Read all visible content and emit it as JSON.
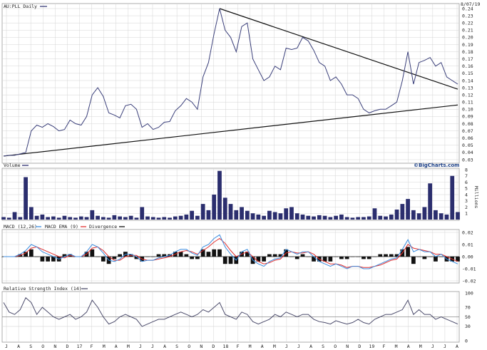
{
  "colors": {
    "price": "#3a3f7a",
    "trendline": "#111111",
    "volume": "#2b2e6e",
    "macd": "#3b8de0",
    "ema": "#e03030",
    "divergence": "#111111",
    "rsi": "#4a4a6a",
    "grid": "#d4d4d4",
    "axis": "#999999"
  },
  "header": {
    "symbol_title": "AU:PLL Daily",
    "date": "8/07/19",
    "brand": "©BigCharts.com"
  },
  "chart_data": [
    {
      "type": "line",
      "title": "AU:PLL Daily",
      "ylim": [
        0.03,
        0.24
      ],
      "y_ticks": [
        "0.24",
        "0.23",
        "0.22",
        "0.21",
        "0.20",
        "0.19",
        "0.18",
        "0.17",
        "0.16",
        "0.15",
        "0.14",
        "0.13",
        "0.12",
        "0.11",
        "0.10",
        "0.09",
        "0.08",
        "0.07",
        "0.06",
        "0.05",
        "0.04",
        "0.03"
      ],
      "x_tick_labels": [
        "J",
        "A",
        "S",
        "O",
        "N",
        "D",
        "17",
        "F",
        "M",
        "A",
        "M",
        "J",
        "J",
        "A",
        "S",
        "O",
        "N",
        "D",
        "18",
        "F",
        "M",
        "A",
        "M",
        "J",
        "J",
        "A",
        "S",
        "O",
        "N",
        "D",
        "19",
        "F",
        "M",
        "A",
        "M",
        "J",
        "J",
        "A"
      ],
      "grid": true,
      "series": [
        {
          "values": [
            0.035,
            0.036,
            0.036,
            0.038,
            0.04,
            0.07,
            0.078,
            0.075,
            0.08,
            0.076,
            0.07,
            0.072,
            0.085,
            0.08,
            0.078,
            0.09,
            0.12,
            0.13,
            0.118,
            0.095,
            0.092,
            0.088,
            0.105,
            0.107,
            0.1,
            0.075,
            0.08,
            0.072,
            0.075,
            0.082,
            0.083,
            0.098,
            0.105,
            0.115,
            0.11,
            0.1,
            0.145,
            0.165,
            0.205,
            0.24,
            0.21,
            0.2,
            0.18,
            0.215,
            0.22,
            0.17,
            0.155,
            0.14,
            0.145,
            0.16,
            0.155,
            0.185,
            0.183,
            0.185,
            0.2,
            0.195,
            0.182,
            0.165,
            0.16,
            0.14,
            0.145,
            0.135,
            0.12,
            0.12,
            0.115,
            0.1,
            0.095,
            0.098,
            0.1,
            0.1,
            0.105,
            0.11,
            0.14,
            0.18,
            0.135,
            0.165,
            0.168,
            0.172,
            0.16,
            0.165,
            0.145,
            0.14,
            0.135
          ]
        }
      ],
      "trendlines": [
        {
          "from_index": 0,
          "from_value": 0.035,
          "to_index": 82,
          "to_value": 0.106
        },
        {
          "from_index": 39,
          "from_value": 0.24,
          "to_index": 82,
          "to_value": 0.128
        }
      ]
    },
    {
      "type": "bar",
      "title": "Volume",
      "ylabel": "Millions",
      "ylim": [
        0,
        8
      ],
      "y_ticks": [
        "8",
        "7",
        "6",
        "5",
        "4",
        "3",
        "2",
        "1"
      ],
      "series": [
        {
          "values": [
            0.4,
            0.3,
            1.2,
            0.4,
            6.8,
            2.0,
            0.6,
            0.8,
            0.4,
            0.5,
            0.3,
            0.6,
            0.4,
            0.3,
            0.5,
            0.4,
            1.5,
            0.6,
            0.4,
            0.3,
            0.7,
            0.5,
            0.4,
            0.6,
            0.3,
            2.0,
            0.5,
            0.4,
            0.3,
            0.4,
            0.3,
            0.5,
            0.6,
            0.8,
            1.4,
            0.6,
            2.5,
            1.5,
            4.0,
            7.8,
            3.5,
            2.5,
            1.5,
            2.0,
            1.4,
            1.0,
            0.8,
            0.6,
            1.4,
            1.2,
            1.0,
            1.8,
            2.0,
            1.0,
            0.8,
            0.6,
            0.5,
            0.7,
            0.6,
            0.4,
            0.6,
            0.8,
            0.4,
            0.3,
            0.4,
            0.4,
            0.5,
            1.8,
            0.6,
            0.5,
            0.8,
            1.6,
            2.5,
            3.3,
            1.5,
            1.0,
            2.0,
            5.8,
            1.5,
            1.0,
            0.8,
            7.0,
            1.2
          ]
        }
      ]
    },
    {
      "type": "line",
      "title": "MACD (12,26)",
      "legend": [
        "MACD (12,26)",
        "MACD EMA (9)",
        "Divergence"
      ],
      "ylim": [
        -0.02,
        0.02
      ],
      "y_ticks": [
        "0.02",
        "0.01",
        "0.00",
        "-0.01",
        "-0.02"
      ],
      "series": [
        {
          "name": "MACD (12,26)",
          "values": [
            0.0,
            0.0,
            0.0,
            0.002,
            0.005,
            0.01,
            0.008,
            0.004,
            0.002,
            0.0,
            -0.002,
            0.0,
            0.002,
            0.0,
            0.0,
            0.004,
            0.01,
            0.008,
            0.003,
            -0.003,
            -0.004,
            -0.002,
            0.002,
            0.002,
            0.0,
            -0.004,
            -0.003,
            -0.003,
            -0.001,
            0.0,
            0.001,
            0.004,
            0.006,
            0.006,
            0.003,
            0.001,
            0.008,
            0.01,
            0.015,
            0.018,
            0.008,
            0.002,
            -0.003,
            0.004,
            0.006,
            -0.003,
            -0.006,
            -0.008,
            -0.004,
            -0.002,
            -0.001,
            0.006,
            0.004,
            0.002,
            0.004,
            0.004,
            0.0,
            -0.004,
            -0.006,
            -0.008,
            -0.006,
            -0.008,
            -0.01,
            -0.008,
            -0.008,
            -0.01,
            -0.01,
            -0.008,
            -0.006,
            -0.004,
            -0.002,
            -0.001,
            0.006,
            0.014,
            0.004,
            0.006,
            0.004,
            0.004,
            0.0,
            0.002,
            -0.002,
            -0.004,
            -0.006
          ]
        },
        {
          "name": "MACD EMA (9)",
          "values": [
            0.0,
            0.0,
            0.0,
            0.001,
            0.003,
            0.007,
            0.008,
            0.006,
            0.004,
            0.002,
            0.0,
            -0.001,
            0.001,
            0.0,
            0.0,
            0.002,
            0.007,
            0.008,
            0.005,
            0.0,
            -0.003,
            -0.003,
            0.0,
            0.001,
            0.001,
            -0.002,
            -0.003,
            -0.003,
            -0.002,
            -0.001,
            0.0,
            0.002,
            0.004,
            0.005,
            0.004,
            0.002,
            0.005,
            0.008,
            0.012,
            0.015,
            0.011,
            0.005,
            0.0,
            0.002,
            0.004,
            0.0,
            -0.004,
            -0.006,
            -0.005,
            -0.003,
            -0.002,
            0.003,
            0.004,
            0.003,
            0.003,
            0.004,
            0.002,
            -0.002,
            -0.004,
            -0.006,
            -0.006,
            -0.007,
            -0.009,
            -0.008,
            -0.008,
            -0.009,
            -0.009,
            -0.008,
            -0.007,
            -0.005,
            -0.003,
            -0.002,
            0.003,
            0.01,
            0.007,
            0.006,
            0.005,
            0.004,
            0.002,
            0.002,
            0.0,
            -0.002,
            -0.004
          ]
        }
      ]
    },
    {
      "type": "line",
      "title": "Relative Strength Index (14)",
      "ylim": [
        0,
        100
      ],
      "y_ticks": [
        "100",
        "70",
        "50",
        "30",
        "0"
      ],
      "reference_lines": [
        70,
        50,
        30
      ],
      "series": [
        {
          "name": "Relative Strength Index (14)",
          "values": [
            80,
            60,
            55,
            65,
            90,
            80,
            55,
            70,
            60,
            50,
            45,
            50,
            55,
            45,
            50,
            60,
            85,
            70,
            50,
            35,
            40,
            50,
            55,
            50,
            45,
            30,
            35,
            40,
            45,
            45,
            50,
            55,
            60,
            55,
            50,
            55,
            65,
            60,
            70,
            80,
            55,
            50,
            45,
            60,
            55,
            40,
            35,
            40,
            45,
            55,
            50,
            60,
            55,
            50,
            55,
            55,
            45,
            40,
            38,
            35,
            42,
            38,
            35,
            38,
            45,
            38,
            35,
            45,
            50,
            55,
            55,
            60,
            65,
            85,
            55,
            65,
            55,
            55,
            45,
            50,
            45,
            40,
            35
          ]
        }
      ]
    }
  ]
}
